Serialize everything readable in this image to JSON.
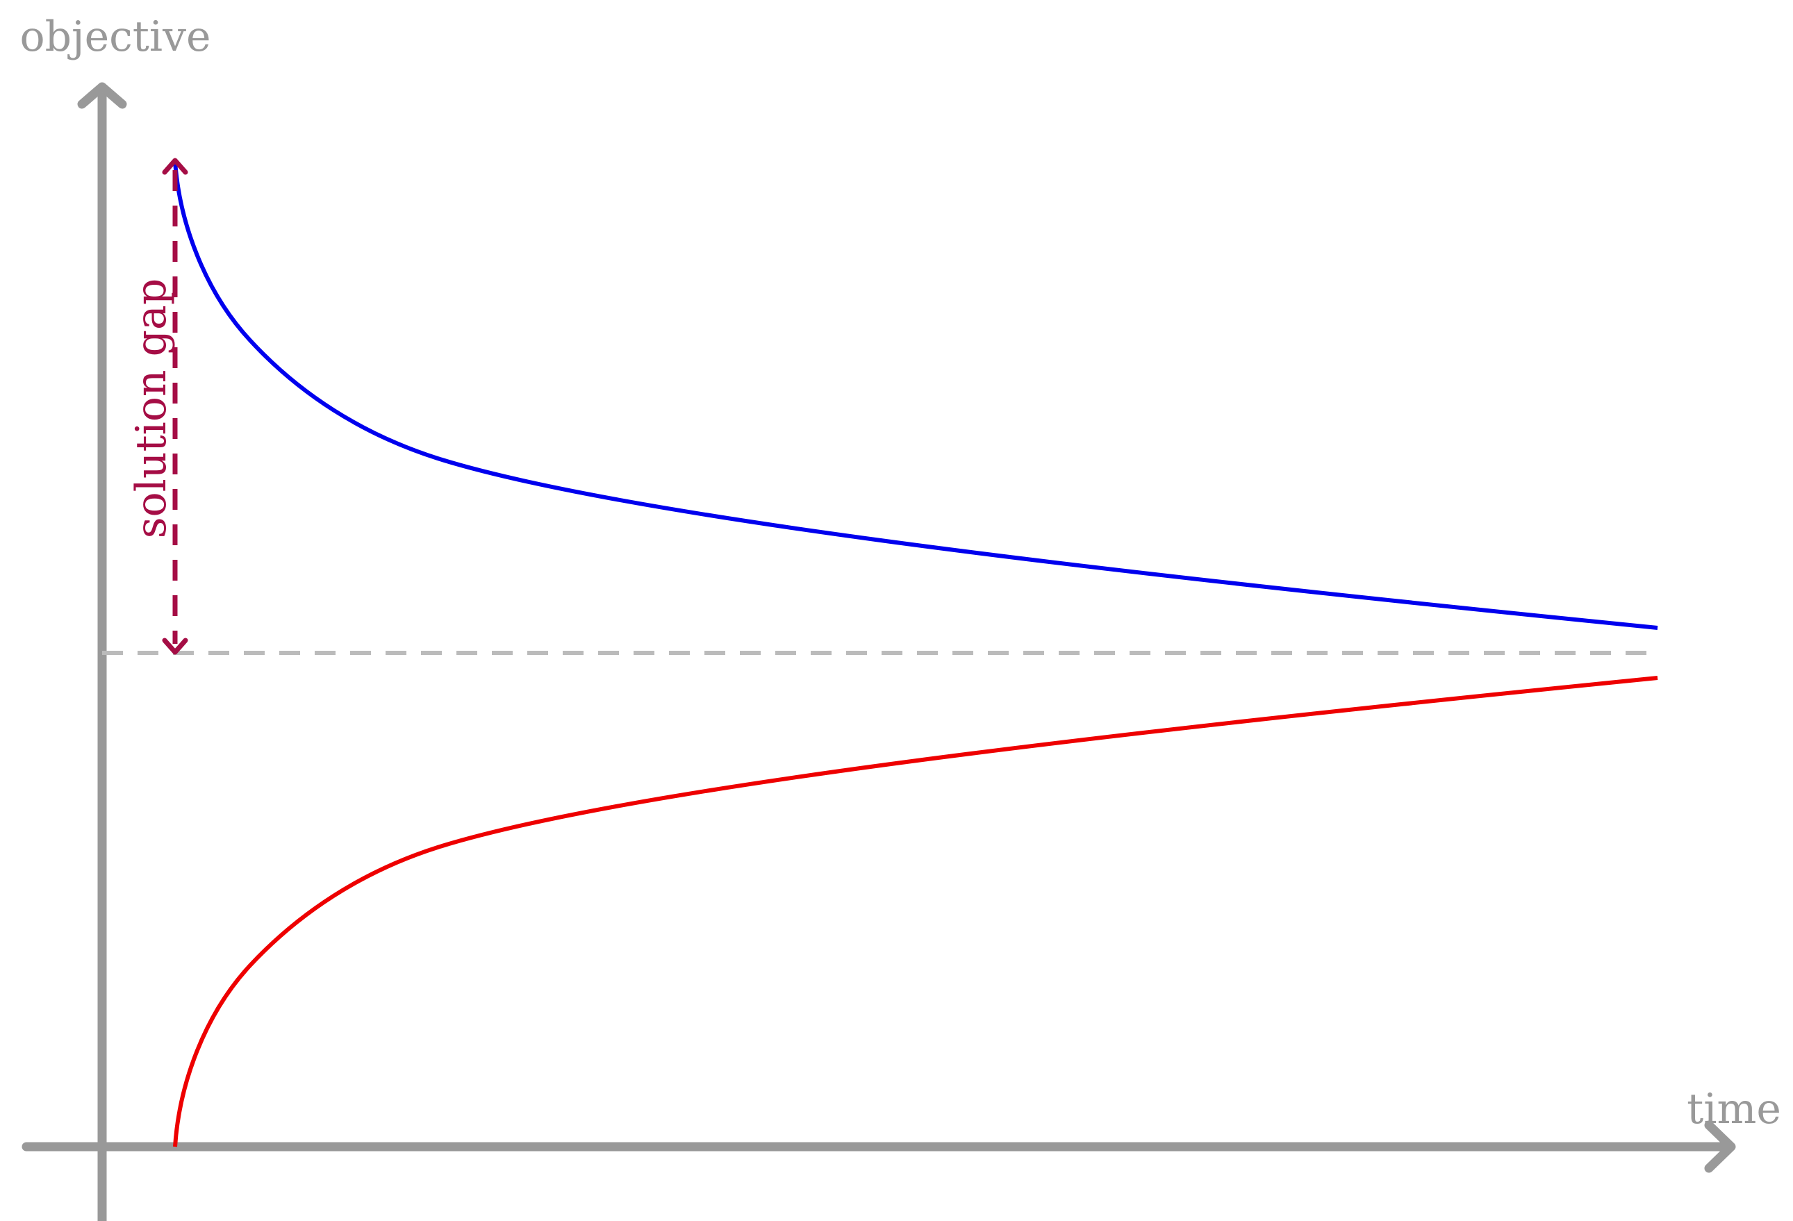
{
  "labels": {
    "y_axis": "objective",
    "x_axis": "time",
    "gap": "solution gap"
  },
  "colors": {
    "axis": "#999999",
    "upper_bound": "#0000ee",
    "lower_bound": "#ee0000",
    "gap": "#a50d45",
    "optimum": "#bbbbbb",
    "background": "#ffffff"
  },
  "icons": {
    "axis_arrowheads": "chevron-arrow-icon",
    "gap_arrowheads": "double-headed-arrow-icon"
  }
}
